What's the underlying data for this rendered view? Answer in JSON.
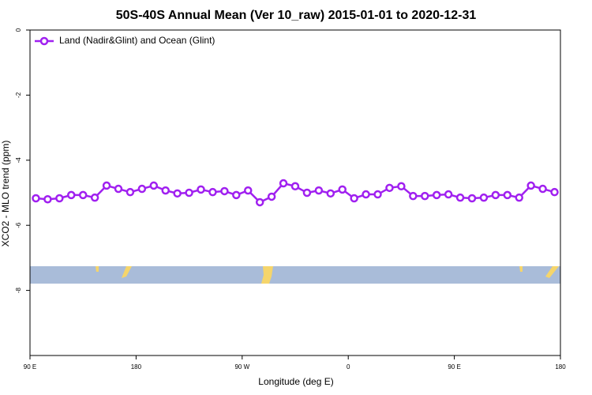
{
  "chart_data": {
    "type": "line",
    "title": "50S-40S Annual Mean (Ver 10_raw)   2015-01-01 to 2020-12-31",
    "x_label": "Longitude (deg E)",
    "y_label": "XCO2 - MLO trend (ppm)",
    "x": [
      95,
      105,
      115,
      125,
      135,
      145,
      155,
      165,
      175,
      185,
      195,
      205,
      215,
      225,
      235,
      245,
      255,
      265,
      275,
      285,
      295,
      305,
      315,
      325,
      335,
      345,
      355,
      365,
      375,
      385,
      395,
      405,
      415,
      425,
      435,
      445,
      455,
      465,
      475,
      485,
      495,
      505,
      515,
      525,
      535
    ],
    "series": [
      {
        "name": "Land (Nadir&Glint) and Ocean (Glint)",
        "color": "#a020f0",
        "values": [
          -5.17,
          -5.2,
          -5.17,
          -5.07,
          -5.07,
          -5.15,
          -4.78,
          -4.88,
          -4.98,
          -4.88,
          -4.78,
          -4.93,
          -5.02,
          -5.0,
          -4.9,
          -4.98,
          -4.95,
          -5.07,
          -4.93,
          -5.29,
          -5.12,
          -4.71,
          -4.8,
          -5.0,
          -4.93,
          -5.02,
          -4.9,
          -5.17,
          -5.05,
          -5.05,
          -4.85,
          -4.8,
          -5.1,
          -5.1,
          -5.07,
          -5.05,
          -5.15,
          -5.17,
          -5.15,
          -5.07,
          -5.07,
          -5.15,
          -4.78,
          -4.88,
          -4.98
        ]
      }
    ],
    "xlim": [
      90,
      540
    ],
    "xticks": [
      {
        "value": 90,
        "label": "90 E"
      },
      {
        "value": 180,
        "label": "180"
      },
      {
        "value": 270,
        "label": "90 W"
      },
      {
        "value": 360,
        "label": "0"
      },
      {
        "value": 450,
        "label": "90 E"
      },
      {
        "value": 540,
        "label": "180"
      }
    ],
    "ylim": [
      -10,
      0
    ],
    "yticks": [
      0,
      -2,
      -4,
      -6,
      -8
    ],
    "legend": "top-left"
  }
}
